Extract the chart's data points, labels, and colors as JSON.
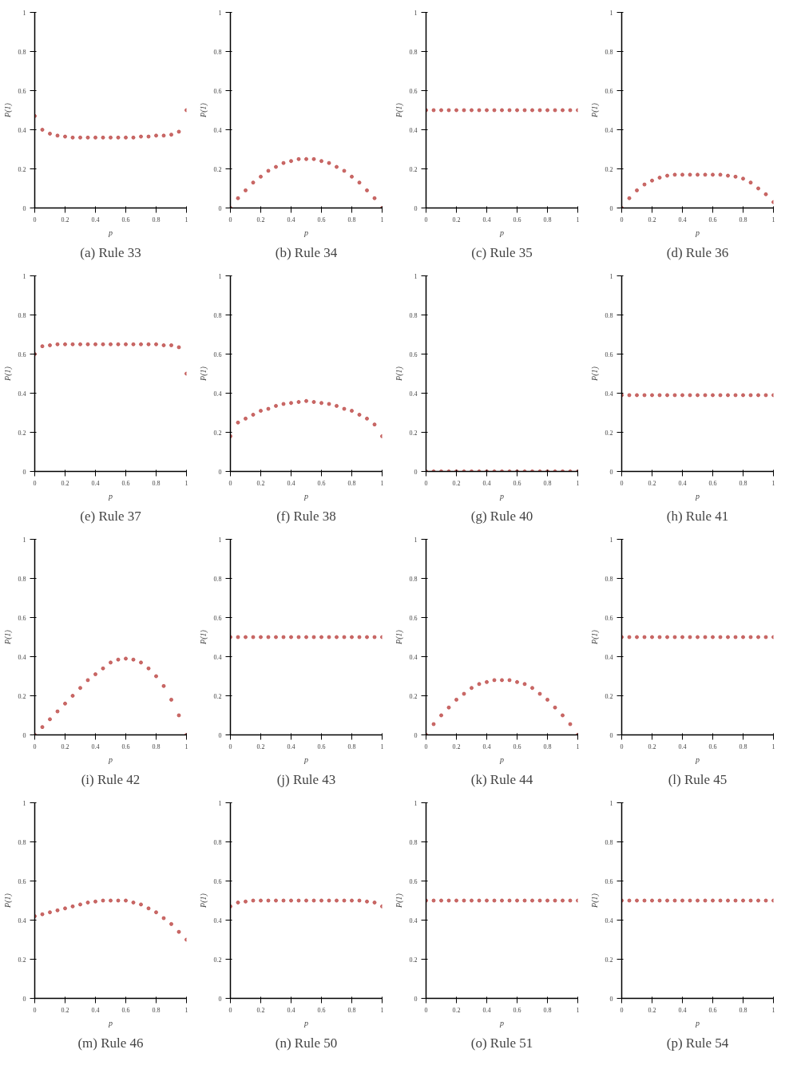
{
  "chart_data": [
    {
      "type": "scatter",
      "title": "(a) Rule 33",
      "xlabel": "p",
      "ylabel": "P(1)",
      "color": "#c0504d",
      "marker": "circle",
      "xlim": [
        0,
        1
      ],
      "ylim": [
        0,
        1
      ],
      "xticks": [
        0,
        0.2,
        0.4,
        0.6,
        0.8,
        1
      ],
      "yticks": [
        0,
        0.2,
        0.4,
        0.6,
        0.8,
        1
      ],
      "x": [
        0,
        0.05,
        0.1,
        0.15,
        0.2,
        0.25,
        0.3,
        0.35,
        0.4,
        0.45,
        0.5,
        0.55,
        0.6,
        0.65,
        0.7,
        0.75,
        0.8,
        0.85,
        0.9,
        0.95,
        1
      ],
      "values": [
        0.47,
        0.4,
        0.38,
        0.37,
        0.365,
        0.36,
        0.36,
        0.36,
        0.36,
        0.36,
        0.36,
        0.36,
        0.36,
        0.36,
        0.365,
        0.365,
        0.37,
        0.37,
        0.375,
        0.39,
        0.5
      ]
    },
    {
      "type": "scatter",
      "title": "(b) Rule 34",
      "xlabel": "p",
      "ylabel": "P(1)",
      "color": "#c0504d",
      "marker": "circle",
      "xlim": [
        0,
        1
      ],
      "ylim": [
        0,
        1
      ],
      "xticks": [
        0,
        0.2,
        0.4,
        0.6,
        0.8,
        1
      ],
      "yticks": [
        0,
        0.2,
        0.4,
        0.6,
        0.8,
        1
      ],
      "x": [
        0,
        0.05,
        0.1,
        0.15,
        0.2,
        0.25,
        0.3,
        0.35,
        0.4,
        0.45,
        0.5,
        0.55,
        0.6,
        0.65,
        0.7,
        0.75,
        0.8,
        0.85,
        0.9,
        0.95,
        1
      ],
      "values": [
        0,
        0.05,
        0.09,
        0.13,
        0.16,
        0.19,
        0.21,
        0.23,
        0.24,
        0.25,
        0.25,
        0.25,
        0.24,
        0.23,
        0.21,
        0.19,
        0.16,
        0.13,
        0.09,
        0.05,
        0
      ]
    },
    {
      "type": "scatter",
      "title": "(c) Rule 35",
      "xlabel": "p",
      "ylabel": "P(1)",
      "color": "#c0504d",
      "marker": "circle",
      "xlim": [
        0,
        1
      ],
      "ylim": [
        0,
        1
      ],
      "xticks": [
        0,
        0.2,
        0.4,
        0.6,
        0.8,
        1
      ],
      "yticks": [
        0,
        0.2,
        0.4,
        0.6,
        0.8,
        1
      ],
      "x": [
        0,
        0.05,
        0.1,
        0.15,
        0.2,
        0.25,
        0.3,
        0.35,
        0.4,
        0.45,
        0.5,
        0.55,
        0.6,
        0.65,
        0.7,
        0.75,
        0.8,
        0.85,
        0.9,
        0.95,
        1
      ],
      "values": [
        0.5,
        0.5,
        0.5,
        0.5,
        0.5,
        0.5,
        0.5,
        0.5,
        0.5,
        0.5,
        0.5,
        0.5,
        0.5,
        0.5,
        0.5,
        0.5,
        0.5,
        0.5,
        0.5,
        0.5,
        0.5
      ]
    },
    {
      "type": "scatter",
      "title": "(d) Rule 36",
      "xlabel": "p",
      "ylabel": "P(1)",
      "color": "#c0504d",
      "marker": "circle",
      "xlim": [
        0,
        1
      ],
      "ylim": [
        0,
        1
      ],
      "xticks": [
        0,
        0.2,
        0.4,
        0.6,
        0.8,
        1
      ],
      "yticks": [
        0,
        0.2,
        0.4,
        0.6,
        0.8,
        1
      ],
      "x": [
        0,
        0.05,
        0.1,
        0.15,
        0.2,
        0.25,
        0.3,
        0.35,
        0.4,
        0.45,
        0.5,
        0.55,
        0.6,
        0.65,
        0.7,
        0.75,
        0.8,
        0.85,
        0.9,
        0.95,
        1
      ],
      "values": [
        0,
        0.05,
        0.09,
        0.12,
        0.14,
        0.155,
        0.165,
        0.17,
        0.17,
        0.17,
        0.17,
        0.17,
        0.17,
        0.17,
        0.165,
        0.16,
        0.15,
        0.13,
        0.1,
        0.07,
        0.03
      ]
    },
    {
      "type": "scatter",
      "title": "(e) Rule 37",
      "xlabel": "p",
      "ylabel": "P(1)",
      "color": "#c0504d",
      "marker": "circle",
      "xlim": [
        0,
        1
      ],
      "ylim": [
        0,
        1
      ],
      "xticks": [
        0,
        0.2,
        0.4,
        0.6,
        0.8,
        1
      ],
      "yticks": [
        0,
        0.2,
        0.4,
        0.6,
        0.8,
        1
      ],
      "x": [
        0,
        0.05,
        0.1,
        0.15,
        0.2,
        0.25,
        0.3,
        0.35,
        0.4,
        0.45,
        0.5,
        0.55,
        0.6,
        0.65,
        0.7,
        0.75,
        0.8,
        0.85,
        0.9,
        0.95,
        1
      ],
      "values": [
        0.6,
        0.64,
        0.645,
        0.65,
        0.65,
        0.65,
        0.65,
        0.65,
        0.65,
        0.65,
        0.65,
        0.65,
        0.65,
        0.65,
        0.65,
        0.65,
        0.65,
        0.645,
        0.645,
        0.635,
        0.5
      ]
    },
    {
      "type": "scatter",
      "title": "(f) Rule 38",
      "xlabel": "p",
      "ylabel": "P(1)",
      "color": "#c0504d",
      "marker": "circle",
      "xlim": [
        0,
        1
      ],
      "ylim": [
        0,
        1
      ],
      "xticks": [
        0,
        0.2,
        0.4,
        0.6,
        0.8,
        1
      ],
      "yticks": [
        0,
        0.2,
        0.4,
        0.6,
        0.8,
        1
      ],
      "x": [
        0,
        0.05,
        0.1,
        0.15,
        0.2,
        0.25,
        0.3,
        0.35,
        0.4,
        0.45,
        0.5,
        0.55,
        0.6,
        0.65,
        0.7,
        0.75,
        0.8,
        0.85,
        0.9,
        0.95,
        1
      ],
      "values": [
        0.18,
        0.25,
        0.27,
        0.29,
        0.31,
        0.32,
        0.335,
        0.345,
        0.35,
        0.355,
        0.36,
        0.355,
        0.35,
        0.345,
        0.335,
        0.32,
        0.31,
        0.29,
        0.27,
        0.24,
        0.18
      ]
    },
    {
      "type": "scatter",
      "title": "(g) Rule 40",
      "xlabel": "p",
      "ylabel": "P(1)",
      "color": "#c0504d",
      "marker": "circle",
      "xlim": [
        0,
        1
      ],
      "ylim": [
        0,
        1
      ],
      "xticks": [
        0,
        0.2,
        0.4,
        0.6,
        0.8,
        1
      ],
      "yticks": [
        0,
        0.2,
        0.4,
        0.6,
        0.8,
        1
      ],
      "x": [
        0,
        0.05,
        0.1,
        0.15,
        0.2,
        0.25,
        0.3,
        0.35,
        0.4,
        0.45,
        0.5,
        0.55,
        0.6,
        0.65,
        0.7,
        0.75,
        0.8,
        0.85,
        0.9,
        0.95,
        1
      ],
      "values": [
        0,
        0,
        0,
        0,
        0,
        0,
        0,
        0,
        0,
        0,
        0,
        0,
        0,
        0,
        0,
        0,
        0,
        0,
        0,
        0,
        0
      ]
    },
    {
      "type": "scatter",
      "title": "(h) Rule 41",
      "xlabel": "p",
      "ylabel": "P(1)",
      "color": "#c0504d",
      "marker": "circle",
      "xlim": [
        0,
        1
      ],
      "ylim": [
        0,
        1
      ],
      "xticks": [
        0,
        0.2,
        0.4,
        0.6,
        0.8,
        1
      ],
      "yticks": [
        0,
        0.2,
        0.4,
        0.6,
        0.8,
        1
      ],
      "x": [
        0,
        0.05,
        0.1,
        0.15,
        0.2,
        0.25,
        0.3,
        0.35,
        0.4,
        0.45,
        0.5,
        0.55,
        0.6,
        0.65,
        0.7,
        0.75,
        0.8,
        0.85,
        0.9,
        0.95,
        1
      ],
      "values": [
        0.39,
        0.39,
        0.39,
        0.39,
        0.39,
        0.39,
        0.39,
        0.39,
        0.39,
        0.39,
        0.39,
        0.39,
        0.39,
        0.39,
        0.39,
        0.39,
        0.39,
        0.39,
        0.39,
        0.39,
        0.39
      ]
    },
    {
      "type": "scatter",
      "title": "(i) Rule 42",
      "xlabel": "p",
      "ylabel": "P(1)",
      "color": "#c0504d",
      "marker": "circle",
      "xlim": [
        0,
        1
      ],
      "ylim": [
        0,
        1
      ],
      "xticks": [
        0,
        0.2,
        0.4,
        0.6,
        0.8,
        1
      ],
      "yticks": [
        0,
        0.2,
        0.4,
        0.6,
        0.8,
        1
      ],
      "x": [
        0,
        0.05,
        0.1,
        0.15,
        0.2,
        0.25,
        0.3,
        0.35,
        0.4,
        0.45,
        0.5,
        0.55,
        0.6,
        0.65,
        0.7,
        0.75,
        0.8,
        0.85,
        0.9,
        0.95,
        1
      ],
      "values": [
        0,
        0.04,
        0.08,
        0.12,
        0.16,
        0.2,
        0.24,
        0.28,
        0.31,
        0.34,
        0.37,
        0.385,
        0.39,
        0.385,
        0.37,
        0.34,
        0.3,
        0.25,
        0.18,
        0.1,
        0
      ]
    },
    {
      "type": "scatter",
      "title": "(j) Rule 43",
      "xlabel": "p",
      "ylabel": "P(1)",
      "color": "#c0504d",
      "marker": "circle",
      "xlim": [
        0,
        1
      ],
      "ylim": [
        0,
        1
      ],
      "xticks": [
        0,
        0.2,
        0.4,
        0.6,
        0.8,
        1
      ],
      "yticks": [
        0,
        0.2,
        0.4,
        0.6,
        0.8,
        1
      ],
      "x": [
        0,
        0.05,
        0.1,
        0.15,
        0.2,
        0.25,
        0.3,
        0.35,
        0.4,
        0.45,
        0.5,
        0.55,
        0.6,
        0.65,
        0.7,
        0.75,
        0.8,
        0.85,
        0.9,
        0.95,
        1
      ],
      "values": [
        0.5,
        0.5,
        0.5,
        0.5,
        0.5,
        0.5,
        0.5,
        0.5,
        0.5,
        0.5,
        0.5,
        0.5,
        0.5,
        0.5,
        0.5,
        0.5,
        0.5,
        0.5,
        0.5,
        0.5,
        0.5
      ]
    },
    {
      "type": "scatter",
      "title": "(k) Rule 44",
      "xlabel": "p",
      "ylabel": "P(1)",
      "color": "#c0504d",
      "marker": "circle",
      "xlim": [
        0,
        1
      ],
      "ylim": [
        0,
        1
      ],
      "xticks": [
        0,
        0.2,
        0.4,
        0.6,
        0.8,
        1
      ],
      "yticks": [
        0,
        0.2,
        0.4,
        0.6,
        0.8,
        1
      ],
      "x": [
        0,
        0.05,
        0.1,
        0.15,
        0.2,
        0.25,
        0.3,
        0.35,
        0.4,
        0.45,
        0.5,
        0.55,
        0.6,
        0.65,
        0.7,
        0.75,
        0.8,
        0.85,
        0.9,
        0.95,
        1
      ],
      "values": [
        0,
        0.055,
        0.1,
        0.14,
        0.18,
        0.21,
        0.24,
        0.26,
        0.27,
        0.28,
        0.28,
        0.28,
        0.27,
        0.26,
        0.24,
        0.21,
        0.18,
        0.14,
        0.1,
        0.055,
        0
      ]
    },
    {
      "type": "scatter",
      "title": "(l) Rule 45",
      "xlabel": "p",
      "ylabel": "P(1)",
      "color": "#c0504d",
      "marker": "circle",
      "xlim": [
        0,
        1
      ],
      "ylim": [
        0,
        1
      ],
      "xticks": [
        0,
        0.2,
        0.4,
        0.6,
        0.8,
        1
      ],
      "yticks": [
        0,
        0.2,
        0.4,
        0.6,
        0.8,
        1
      ],
      "x": [
        0,
        0.05,
        0.1,
        0.15,
        0.2,
        0.25,
        0.3,
        0.35,
        0.4,
        0.45,
        0.5,
        0.55,
        0.6,
        0.65,
        0.7,
        0.75,
        0.8,
        0.85,
        0.9,
        0.95,
        1
      ],
      "values": [
        0.5,
        0.5,
        0.5,
        0.5,
        0.5,
        0.5,
        0.5,
        0.5,
        0.5,
        0.5,
        0.5,
        0.5,
        0.5,
        0.5,
        0.5,
        0.5,
        0.5,
        0.5,
        0.5,
        0.5,
        0.5
      ]
    },
    {
      "type": "scatter",
      "title": "(m) Rule 46",
      "xlabel": "p",
      "ylabel": "P(1)",
      "color": "#c0504d",
      "marker": "circle",
      "xlim": [
        0,
        1
      ],
      "ylim": [
        0,
        1
      ],
      "xticks": [
        0,
        0.2,
        0.4,
        0.6,
        0.8,
        1
      ],
      "yticks": [
        0,
        0.2,
        0.4,
        0.6,
        0.8,
        1
      ],
      "x": [
        0,
        0.05,
        0.1,
        0.15,
        0.2,
        0.25,
        0.3,
        0.35,
        0.4,
        0.45,
        0.5,
        0.55,
        0.6,
        0.65,
        0.7,
        0.75,
        0.8,
        0.85,
        0.9,
        0.95,
        1
      ],
      "values": [
        0.42,
        0.43,
        0.44,
        0.45,
        0.46,
        0.47,
        0.48,
        0.49,
        0.495,
        0.5,
        0.5,
        0.5,
        0.5,
        0.49,
        0.48,
        0.46,
        0.44,
        0.41,
        0.38,
        0.34,
        0.3
      ]
    },
    {
      "type": "scatter",
      "title": "(n) Rule 50",
      "xlabel": "p",
      "ylabel": "P(1)",
      "color": "#c0504d",
      "marker": "circle",
      "xlim": [
        0,
        1
      ],
      "ylim": [
        0,
        1
      ],
      "xticks": [
        0,
        0.2,
        0.4,
        0.6,
        0.8,
        1
      ],
      "yticks": [
        0,
        0.2,
        0.4,
        0.6,
        0.8,
        1
      ],
      "x": [
        0,
        0.05,
        0.1,
        0.15,
        0.2,
        0.25,
        0.3,
        0.35,
        0.4,
        0.45,
        0.5,
        0.55,
        0.6,
        0.65,
        0.7,
        0.75,
        0.8,
        0.85,
        0.9,
        0.95,
        1
      ],
      "values": [
        0.47,
        0.49,
        0.495,
        0.5,
        0.5,
        0.5,
        0.5,
        0.5,
        0.5,
        0.5,
        0.5,
        0.5,
        0.5,
        0.5,
        0.5,
        0.5,
        0.5,
        0.5,
        0.495,
        0.49,
        0.47
      ]
    },
    {
      "type": "scatter",
      "title": "(o) Rule 51",
      "xlabel": "p",
      "ylabel": "P(1)",
      "color": "#c0504d",
      "marker": "circle",
      "xlim": [
        0,
        1
      ],
      "ylim": [
        0,
        1
      ],
      "xticks": [
        0,
        0.2,
        0.4,
        0.6,
        0.8,
        1
      ],
      "yticks": [
        0,
        0.2,
        0.4,
        0.6,
        0.8,
        1
      ],
      "x": [
        0,
        0.05,
        0.1,
        0.15,
        0.2,
        0.25,
        0.3,
        0.35,
        0.4,
        0.45,
        0.5,
        0.55,
        0.6,
        0.65,
        0.7,
        0.75,
        0.8,
        0.85,
        0.9,
        0.95,
        1
      ],
      "values": [
        0.5,
        0.5,
        0.5,
        0.5,
        0.5,
        0.5,
        0.5,
        0.5,
        0.5,
        0.5,
        0.5,
        0.5,
        0.5,
        0.5,
        0.5,
        0.5,
        0.5,
        0.5,
        0.5,
        0.5,
        0.5
      ]
    },
    {
      "type": "scatter",
      "title": "(p) Rule 54",
      "xlabel": "p",
      "ylabel": "P(1)",
      "color": "#c0504d",
      "marker": "circle",
      "xlim": [
        0,
        1
      ],
      "ylim": [
        0,
        1
      ],
      "xticks": [
        0,
        0.2,
        0.4,
        0.6,
        0.8,
        1
      ],
      "yticks": [
        0,
        0.2,
        0.4,
        0.6,
        0.8,
        1
      ],
      "x": [
        0,
        0.05,
        0.1,
        0.15,
        0.2,
        0.25,
        0.3,
        0.35,
        0.4,
        0.45,
        0.5,
        0.55,
        0.6,
        0.65,
        0.7,
        0.75,
        0.8,
        0.85,
        0.9,
        0.95,
        1
      ],
      "values": [
        0.5,
        0.5,
        0.5,
        0.5,
        0.5,
        0.5,
        0.5,
        0.5,
        0.5,
        0.5,
        0.5,
        0.5,
        0.5,
        0.5,
        0.5,
        0.5,
        0.5,
        0.5,
        0.5,
        0.5,
        0.5
      ]
    }
  ]
}
